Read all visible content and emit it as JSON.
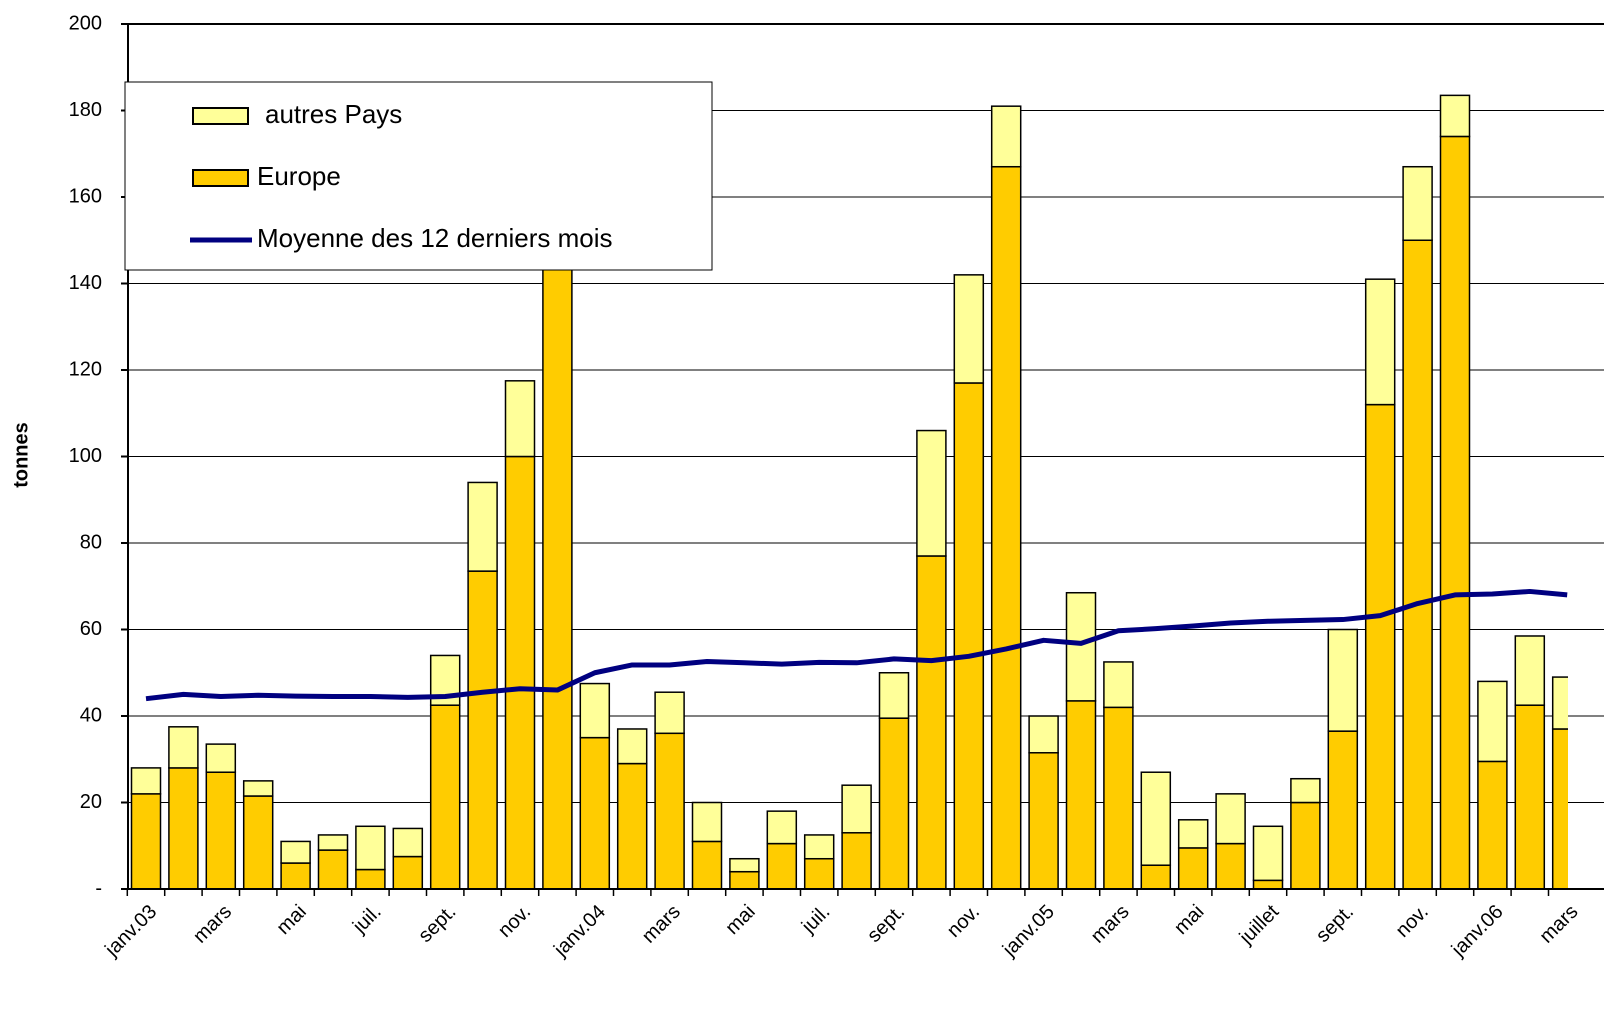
{
  "chart_data": {
    "type": "stacked-bar-line",
    "y_label": "tonnes",
    "categories": [
      "janv.03",
      null,
      "mars",
      null,
      "mai",
      null,
      "juil.",
      null,
      "sept.",
      null,
      "nov.",
      null,
      "janv.04",
      null,
      "mars",
      null,
      "mai",
      null,
      "juil.",
      null,
      "sept.",
      null,
      "nov.",
      null,
      "janv.05",
      null,
      "mars",
      null,
      "mai",
      null,
      "juillet",
      null,
      "sept.",
      null,
      "nov.",
      null,
      "janv.06",
      null,
      "mars"
    ],
    "series": [
      {
        "name": "Europe",
        "type": "bar",
        "color": "#ffcc00",
        "values": [
          22,
          28,
          27,
          21.5,
          6,
          9,
          4.5,
          7.5,
          42.5,
          73.5,
          100,
          155,
          35,
          29,
          36,
          11,
          4,
          10.5,
          7,
          13,
          39.5,
          77,
          117,
          167,
          31.5,
          43.5,
          42,
          5.5,
          9.5,
          10.5,
          2,
          20,
          36.5,
          112,
          150,
          174,
          29.5,
          42.5,
          37
        ]
      },
      {
        "name": "autres Pays",
        "type": "bar",
        "color": "#ffff99",
        "values": [
          6,
          9.5,
          6.5,
          3.5,
          5,
          3.5,
          10,
          6.5,
          11.5,
          20.5,
          17.5,
          15,
          12.5,
          8,
          9.5,
          9,
          3,
          7.5,
          5.5,
          11,
          10.5,
          29,
          25,
          14,
          8.5,
          25,
          10.5,
          21.5,
          6.5,
          11.5,
          12.5,
          5.5,
          23.5,
          29,
          17,
          9.5,
          18.5,
          16,
          12
        ]
      },
      {
        "name": "Moyenne des 12 derniers mois",
        "type": "line",
        "color": "#000080",
        "values": [
          44,
          45,
          44.5,
          44.8,
          44.6,
          44.5,
          44.5,
          44.3,
          44.5,
          45.5,
          46.3,
          46,
          50,
          51.8,
          51.8,
          52.6,
          52.3,
          52,
          52.4,
          52.3,
          53.2,
          52.8,
          53.8,
          55.5,
          57.5,
          56.8,
          59.7,
          60.2,
          60.8,
          61.5,
          61.9,
          62.1,
          62.3,
          63.2,
          66,
          68,
          68.2,
          68.8,
          68
        ]
      }
    ],
    "legend_order": [
      1,
      0,
      2
    ],
    "ylim": [
      0,
      200
    ],
    "yticks": [
      {
        "value": 0,
        "label": "-"
      },
      20,
      40,
      60,
      80,
      100,
      120,
      140,
      160,
      180,
      200
    ],
    "grid": true
  }
}
